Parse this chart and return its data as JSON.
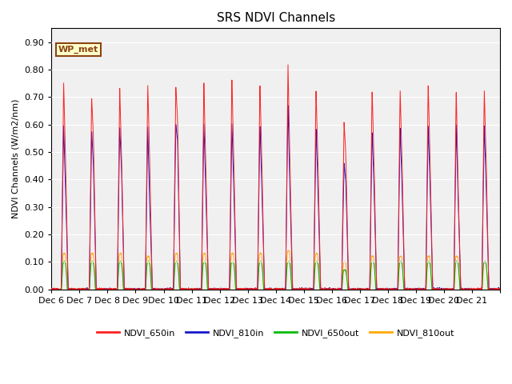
{
  "title": "SRS NDVI Channels",
  "ylabel": "NDVI Channels (W/m2/nm)",
  "ylim": [
    0.0,
    0.95
  ],
  "yticks": [
    0.0,
    0.1,
    0.2,
    0.3,
    0.4,
    0.5,
    0.6,
    0.7,
    0.8,
    0.9
  ],
  "bg_color": "#e8e8e8",
  "plot_bg_color": "#f0f0f0",
  "annotation_text": "WP_met",
  "annotation_bg": "#ffffcc",
  "annotation_border": "#8b4513",
  "colors": {
    "NDVI_650in": "#ff2020",
    "NDVI_810in": "#1818cc",
    "NDVI_650out": "#00bb00",
    "NDVI_810out": "#ffaa00"
  },
  "legend_labels": [
    "NDVI_650in",
    "NDVI_810in",
    "NDVI_650out",
    "NDVI_810out"
  ],
  "xtick_labels": [
    "Dec 6",
    "Dec 7",
    "Dec 8",
    "Dec 9",
    "Dec 10",
    "Dec 11",
    "Dec 12",
    "Dec 13",
    "Dec 14",
    "Dec 15",
    "Dec 16",
    "Dec 17",
    "Dec 18",
    "Dec 19",
    "Dec 20",
    "Dec 21"
  ],
  "n_days": 16,
  "peaks_650in": [
    0.76,
    0.7,
    0.74,
    0.75,
    0.74,
    0.76,
    0.77,
    0.75,
    0.83,
    0.73,
    0.61,
    0.73,
    0.73,
    0.75,
    0.73,
    0.73
  ],
  "peaks_810in": [
    0.6,
    0.58,
    0.59,
    0.6,
    0.6,
    0.61,
    0.61,
    0.6,
    0.68,
    0.59,
    0.46,
    0.58,
    0.59,
    0.6,
    0.6,
    0.6
  ],
  "peaks_650out": [
    0.1,
    0.1,
    0.1,
    0.1,
    0.1,
    0.1,
    0.1,
    0.1,
    0.1,
    0.1,
    0.07,
    0.1,
    0.1,
    0.1,
    0.1,
    0.1
  ],
  "peaks_810out": [
    0.13,
    0.13,
    0.13,
    0.12,
    0.13,
    0.13,
    0.13,
    0.13,
    0.14,
    0.13,
    0.1,
    0.12,
    0.12,
    0.12,
    0.12,
    0.1
  ],
  "shoulder_650in": [
    0.49,
    0.55,
    0.5,
    0.49,
    0.62,
    0.49,
    0.49,
    0.49,
    0.49,
    0.49,
    0.49,
    0.49,
    0.49,
    0.49,
    0.39,
    0.49
  ],
  "shoulder_810in": [
    0.39,
    0.45,
    0.44,
    0.33,
    0.54,
    0.39,
    0.39,
    0.39,
    0.39,
    0.39,
    0.39,
    0.39,
    0.39,
    0.39,
    0.35,
    0.39
  ],
  "figsize": [
    6.4,
    4.8
  ],
  "dpi": 100
}
